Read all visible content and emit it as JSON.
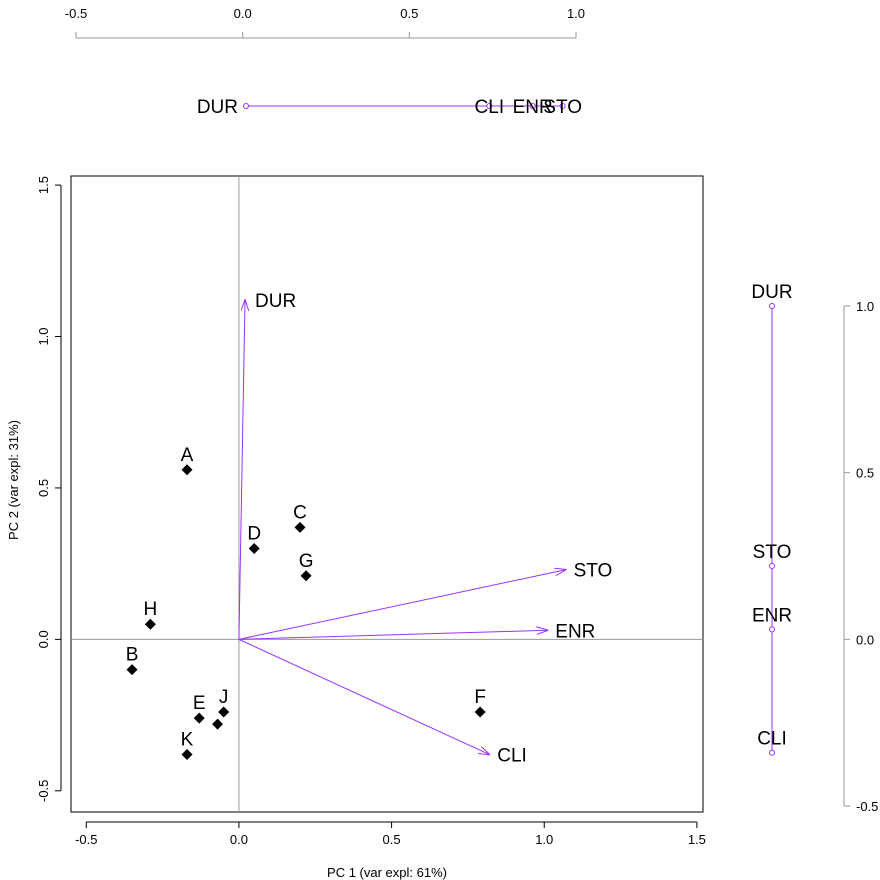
{
  "chart_data": {
    "type": "scatter",
    "title": "",
    "xlabel": "PC 1 (var expl: 61%)",
    "ylabel": "PC 2 (var expl: 31%)",
    "xlim": [
      -0.55,
      1.52
    ],
    "ylim": [
      -0.57,
      1.53
    ],
    "x_ticks": [
      "-0.5",
      "0.0",
      "0.5",
      "1.0",
      "1.5"
    ],
    "y_ticks": [
      "-0.5",
      "0.0",
      "0.5",
      "1.0",
      "1.5"
    ],
    "grid": false,
    "arrow_color": "#9933ff",
    "point_color": "#000000",
    "points": [
      {
        "label": "A",
        "x": -0.17,
        "y": 0.56
      },
      {
        "label": "B",
        "x": -0.35,
        "y": -0.1
      },
      {
        "label": "C",
        "x": 0.2,
        "y": 0.37
      },
      {
        "label": "D",
        "x": 0.05,
        "y": 0.3
      },
      {
        "label": "E",
        "x": -0.13,
        "y": -0.26
      },
      {
        "label": "F",
        "x": 0.79,
        "y": -0.24
      },
      {
        "label": "G",
        "x": 0.22,
        "y": 0.21
      },
      {
        "label": "H",
        "x": -0.29,
        "y": 0.05
      },
      {
        "label": "J",
        "x": -0.05,
        "y": -0.24
      },
      {
        "label": "K",
        "x": -0.17,
        "y": -0.38
      },
      {
        "label": "",
        "x": -0.07,
        "y": -0.28
      }
    ],
    "loadings": [
      {
        "label": "DUR",
        "x": 0.02,
        "y": 1.12
      },
      {
        "label": "STO",
        "x": 1.07,
        "y": 0.23
      },
      {
        "label": "ENR",
        "x": 1.01,
        "y": 0.03
      },
      {
        "label": "CLI",
        "x": 0.82,
        "y": -0.38
      }
    ],
    "top_axis": {
      "range": [
        -0.5,
        1.0
      ],
      "ticks": [
        "-0.5",
        "0.0",
        "0.5",
        "1.0"
      ],
      "loadings": [
        {
          "label": "DUR",
          "value": 0.01
        },
        {
          "label": "CLI",
          "value": 0.74
        },
        {
          "label": "ENR",
          "value": 0.87
        },
        {
          "label": "STO",
          "value": 0.96
        }
      ]
    },
    "right_axis": {
      "range": [
        -0.5,
        1.0
      ],
      "ticks": [
        "-0.5",
        "0.0",
        "0.5",
        "1.0"
      ],
      "loadings": [
        {
          "label": "DUR",
          "value": 1.0
        },
        {
          "label": "STO",
          "value": 0.22
        },
        {
          "label": "ENR",
          "value": 0.03
        },
        {
          "label": "CLI",
          "value": -0.34
        }
      ]
    }
  }
}
